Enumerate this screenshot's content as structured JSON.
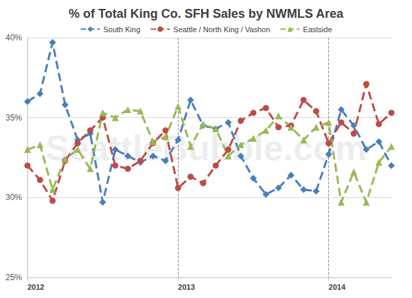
{
  "chart_data": {
    "type": "line",
    "title": "% of Total King Co. SFH Sales by NWMLS Area",
    "annotations": [
      "SeattleBubble.com"
    ],
    "categories": [
      "2012",
      null,
      null,
      null,
      null,
      null,
      null,
      null,
      null,
      null,
      null,
      null,
      "2013",
      null,
      null,
      null,
      null,
      null,
      null,
      null,
      null,
      null,
      null,
      null,
      "2014",
      null,
      null,
      null,
      null,
      null
    ],
    "series": [
      {
        "name": "South King",
        "color": "#4a7ebb",
        "marker": "diamond",
        "line_style": "dashed",
        "values": [
          36.0,
          36.5,
          39.7,
          35.8,
          33.6,
          34.0,
          29.7,
          33.0,
          32.6,
          32.2,
          32.6,
          32.3,
          33.6,
          36.1,
          34.5,
          34.3,
          34.7,
          32.6,
          31.2,
          30.2,
          30.6,
          31.4,
          30.5,
          30.4,
          32.7,
          35.5,
          34.5,
          33.0,
          33.5,
          32.0
        ]
      },
      {
        "name": "Seattle / North King / Vashon",
        "color": "#be4b48",
        "marker": "circle",
        "line_style": "dashed",
        "values": [
          32.0,
          31.1,
          29.8,
          32.3,
          33.4,
          34.2,
          35.0,
          32.0,
          31.8,
          32.3,
          33.4,
          34.2,
          30.6,
          31.3,
          30.9,
          32.0,
          33.0,
          34.8,
          35.3,
          35.6,
          34.4,
          34.5,
          36.1,
          35.4,
          33.4,
          34.7,
          34.0,
          37.1,
          34.6,
          35.3
        ]
      },
      {
        "name": "Eastside",
        "color": "#98b954",
        "marker": "triangle",
        "line_style": "dashed",
        "values": [
          33.0,
          33.3,
          30.5,
          32.4,
          33.0,
          31.8,
          35.3,
          35.0,
          35.5,
          35.4,
          33.5,
          33.8,
          35.7,
          33.2,
          34.6,
          34.3,
          32.6,
          33.3,
          33.7,
          34.2,
          35.1,
          34.4,
          33.6,
          34.4,
          34.7,
          29.7,
          31.6,
          29.7,
          32.2,
          33.2
        ]
      }
    ],
    "ylim": [
      25,
      40
    ],
    "yticks": [
      {
        "value": 25,
        "label": "25%"
      },
      {
        "value": 30,
        "label": "30%"
      },
      {
        "value": 35,
        "label": "35%"
      },
      {
        "value": 40,
        "label": "40%"
      }
    ],
    "grid": true,
    "legend": "top"
  }
}
